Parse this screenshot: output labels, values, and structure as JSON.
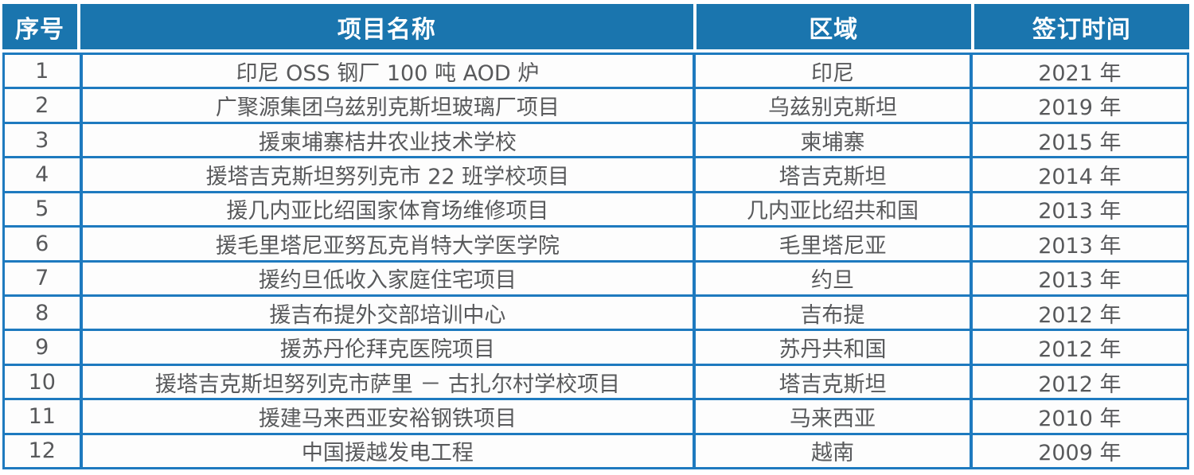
{
  "table": {
    "columns": {
      "no": "序号",
      "name": "项目名称",
      "region": "区域",
      "time": "签订时间"
    },
    "rows": [
      {
        "no": "1",
        "name": "印尼 OSS 钢厂 100 吨 AOD 炉",
        "region": "印尼",
        "time": "2021 年"
      },
      {
        "no": "2",
        "name": "广聚源集团乌兹别克斯坦玻璃厂项目",
        "region": "乌兹别克斯坦",
        "time": "2019 年"
      },
      {
        "no": "3",
        "name": "援柬埔寨桔井农业技术学校",
        "region": "柬埔寨",
        "time": "2015 年"
      },
      {
        "no": "4",
        "name": "援塔吉克斯坦努列克市 22 班学校项目",
        "region": "塔吉克斯坦",
        "time": "2014 年"
      },
      {
        "no": "5",
        "name": "援几内亚比绍国家体育场维修项目",
        "region": "几内亚比绍共和国",
        "time": "2013 年"
      },
      {
        "no": "6",
        "name": "援毛里塔尼亚努瓦克肖特大学医学院",
        "region": "毛里塔尼亚",
        "time": "2013 年"
      },
      {
        "no": "7",
        "name": "援约旦低收入家庭住宅项目",
        "region": "约旦",
        "time": "2013 年"
      },
      {
        "no": "8",
        "name": "援吉布提外交部培训中心",
        "region": "吉布提",
        "time": "2012 年"
      },
      {
        "no": "9",
        "name": "援苏丹伦拜克医院项目",
        "region": "苏丹共和国",
        "time": "2012 年"
      },
      {
        "no": "10",
        "name": "援塔吉克斯坦努列克市萨里 － 古扎尔村学校项目",
        "region": "塔吉克斯坦",
        "time": "2012 年"
      },
      {
        "no": "11",
        "name": "援建马来西亚安裕钢铁项目",
        "region": "马来西亚",
        "time": "2010 年"
      },
      {
        "no": "12",
        "name": "中国援越发电工程",
        "region": "越南",
        "time": "2009 年"
      }
    ]
  },
  "colors": {
    "header_bg": "#1a75ae",
    "grid_border": "#1e7abf",
    "header_text": "#ffffff",
    "body_text": "#58595b",
    "row_bg": "#fdfdfd"
  }
}
